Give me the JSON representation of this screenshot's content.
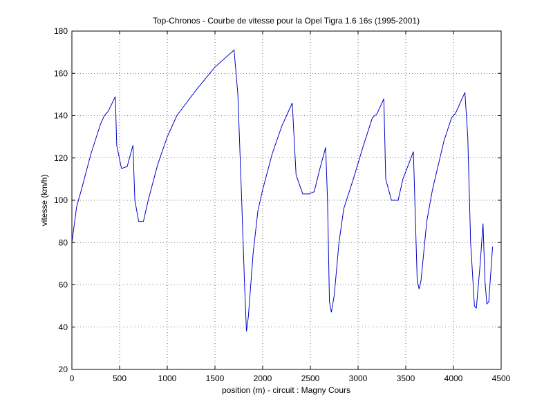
{
  "chart_data": {
    "type": "line",
    "title": "Top-Chronos - Courbe de vitesse pour la Opel Tigra 1.6 16s (1995-2001)",
    "xlabel": "position (m) - circuit : Magny Cours",
    "ylabel": "vitesse (km/h)",
    "xlim": [
      0,
      4500
    ],
    "ylim": [
      20,
      180
    ],
    "xticks": [
      0,
      500,
      1000,
      1500,
      2000,
      2500,
      3000,
      3500,
      4000,
      4500
    ],
    "yticks": [
      20,
      40,
      60,
      80,
      100,
      120,
      140,
      160,
      180
    ],
    "grid": true,
    "x": [
      0,
      50,
      100,
      200,
      300,
      340,
      380,
      455,
      470,
      520,
      580,
      640,
      660,
      700,
      750,
      800,
      900,
      1000,
      1100,
      1300,
      1500,
      1700,
      1740,
      1780,
      1810,
      1830,
      1850,
      1900,
      1950,
      2000,
      2100,
      2200,
      2250,
      2310,
      2350,
      2420,
      2480,
      2540,
      2600,
      2660,
      2680,
      2700,
      2720,
      2750,
      2800,
      2850,
      2950,
      3050,
      3150,
      3200,
      3270,
      3290,
      3350,
      3420,
      3470,
      3580,
      3620,
      3640,
      3660,
      3720,
      3780,
      3900,
      3980,
      4020,
      4120,
      4150,
      4180,
      4220,
      4240,
      4280,
      4310,
      4330,
      4350,
      4370,
      4410
    ],
    "series": [
      {
        "name": "vitesse",
        "color": "#0000cc",
        "values": [
          80,
          97,
          105,
          122,
          136,
          140,
          142,
          149,
          126,
          115,
          116,
          126,
          100,
          90,
          90,
          100,
          117,
          130,
          140,
          152,
          163,
          171,
          150,
          100,
          60,
          38,
          45,
          75,
          95,
          105,
          122,
          135,
          140,
          146,
          112,
          103,
          103,
          104,
          115,
          125,
          100,
          52,
          47,
          55,
          80,
          96,
          110,
          125,
          139,
          141,
          148,
          110,
          100,
          100,
          110,
          123,
          62,
          58,
          62,
          90,
          105,
          128,
          139,
          141,
          151,
          130,
          80,
          50,
          49,
          70,
          89,
          62,
          51,
          52,
          78
        ]
      }
    ]
  }
}
